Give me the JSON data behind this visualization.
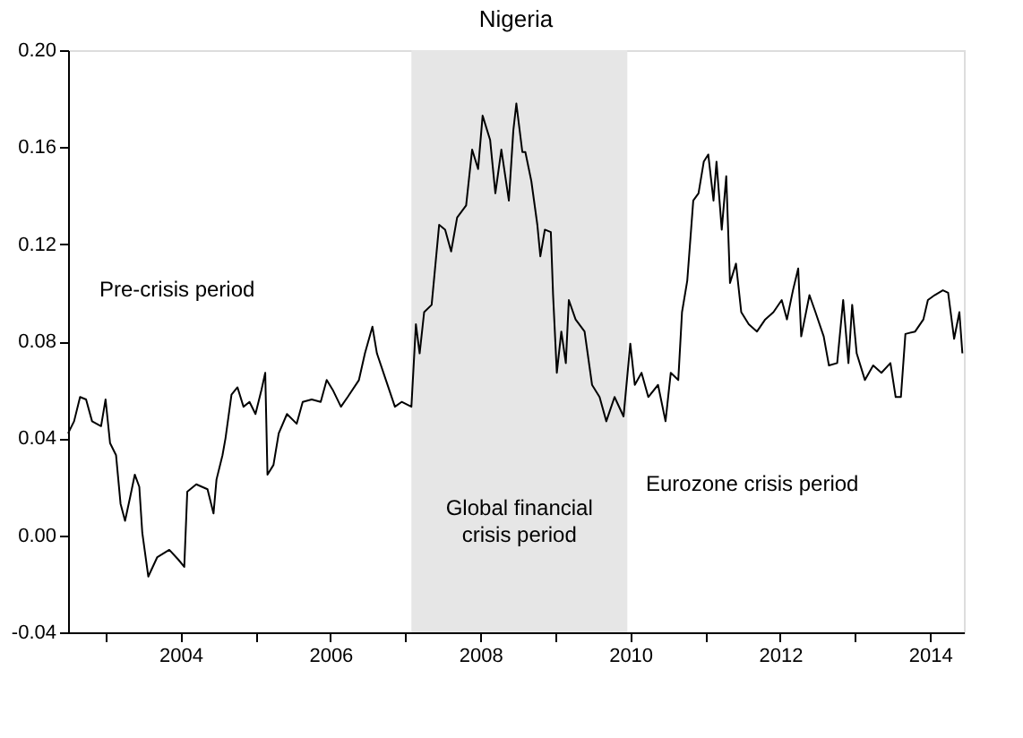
{
  "chart_data": {
    "type": "line",
    "title": "Nigeria",
    "x": [
      2002.5,
      2002.58,
      2002.66,
      2002.74,
      2002.82,
      2002.94,
      2003.0,
      2003.06,
      2003.14,
      2003.2,
      2003.26,
      2003.33,
      2003.39,
      2003.45,
      2003.49,
      2003.57,
      2003.69,
      2003.85,
      2003.97,
      2004.05,
      2004.09,
      2004.21,
      2004.36,
      2004.44,
      2004.48,
      2004.56,
      2004.6,
      2004.68,
      2004.76,
      2004.84,
      2004.92,
      2005.0,
      2005.08,
      2005.13,
      2005.16,
      2005.24,
      2005.31,
      2005.42,
      2005.55,
      2005.63,
      2005.75,
      2005.87,
      2005.95,
      2006.03,
      2006.14,
      2006.23,
      2006.38,
      2006.46,
      2006.56,
      2006.62,
      2006.74,
      2006.86,
      2006.95,
      2007.08,
      2007.14,
      2007.19,
      2007.25,
      2007.35,
      2007.45,
      2007.53,
      2007.61,
      2007.69,
      2007.81,
      2007.89,
      2007.97,
      2008.03,
      2008.13,
      2008.2,
      2008.28,
      2008.38,
      2008.44,
      2008.48,
      2008.56,
      2008.6,
      2008.68,
      2008.76,
      2008.8,
      2008.86,
      2008.94,
      2008.97,
      2009.02,
      2009.08,
      2009.14,
      2009.18,
      2009.27,
      2009.39,
      2009.49,
      2009.59,
      2009.68,
      2009.79,
      2009.91,
      2010.0,
      2010.06,
      2010.15,
      2010.24,
      2010.37,
      2010.47,
      2010.54,
      2010.64,
      2010.69,
      2010.76,
      2010.84,
      2010.91,
      2010.98,
      2011.04,
      2011.11,
      2011.15,
      2011.22,
      2011.28,
      2011.33,
      2011.41,
      2011.48,
      2011.58,
      2011.69,
      2011.8,
      2011.91,
      2012.02,
      2012.09,
      2012.17,
      2012.24,
      2012.28,
      2012.39,
      2012.47,
      2012.58,
      2012.65,
      2012.76,
      2012.84,
      2012.91,
      2012.96,
      2013.02,
      2013.13,
      2013.24,
      2013.35,
      2013.47,
      2013.54,
      2013.61,
      2013.67,
      2013.8,
      2013.91,
      2013.97,
      2014.06,
      2014.17,
      2014.24,
      2014.32,
      2014.39,
      2014.43
    ],
    "series": [
      {
        "color": "#000000",
        "values": [
          0.042,
          0.047,
          0.057,
          0.056,
          0.047,
          0.045,
          0.056,
          0.038,
          0.033,
          0.013,
          0.006,
          0.016,
          0.025,
          0.02,
          0.001,
          -0.017,
          -0.009,
          -0.006,
          -0.01,
          -0.013,
          0.018,
          0.021,
          0.019,
          0.009,
          0.023,
          0.033,
          0.04,
          0.058,
          0.061,
          0.053,
          0.055,
          0.05,
          0.06,
          0.067,
          0.025,
          0.029,
          0.042,
          0.05,
          0.046,
          0.055,
          0.056,
          0.055,
          0.064,
          0.06,
          0.053,
          0.057,
          0.064,
          0.075,
          0.086,
          0.075,
          0.064,
          0.053,
          0.055,
          0.053,
          0.087,
          0.075,
          0.092,
          0.095,
          0.128,
          0.126,
          0.117,
          0.131,
          0.136,
          0.159,
          0.151,
          0.173,
          0.163,
          0.141,
          0.159,
          0.138,
          0.167,
          0.178,
          0.158,
          0.158,
          0.146,
          0.128,
          0.115,
          0.126,
          0.125,
          0.099,
          0.067,
          0.084,
          0.071,
          0.097,
          0.089,
          0.084,
          0.062,
          0.057,
          0.047,
          0.057,
          0.049,
          0.079,
          0.062,
          0.067,
          0.057,
          0.062,
          0.047,
          0.067,
          0.064,
          0.092,
          0.105,
          0.138,
          0.141,
          0.154,
          0.157,
          0.138,
          0.154,
          0.126,
          0.148,
          0.104,
          0.112,
          0.092,
          0.087,
          0.084,
          0.089,
          0.092,
          0.097,
          0.089,
          0.101,
          0.11,
          0.082,
          0.099,
          0.092,
          0.082,
          0.07,
          0.071,
          0.097,
          0.071,
          0.095,
          0.075,
          0.064,
          0.07,
          0.067,
          0.071,
          0.057,
          0.057,
          0.083,
          0.084,
          0.089,
          0.097,
          0.099,
          0.101,
          0.1,
          0.081,
          0.092,
          0.075
        ]
      }
    ],
    "xlim": [
      2002.5,
      2014.45
    ],
    "xticks": [
      {
        "value": 2003,
        "label": null
      },
      2004,
      {
        "value": 2005,
        "label": null
      },
      2006,
      {
        "value": 2007,
        "label": null
      },
      2008,
      {
        "value": 2009,
        "label": null
      },
      2010,
      {
        "value": 2011,
        "label": null
      },
      2012,
      {
        "value": 2013,
        "label": null
      },
      2014
    ],
    "ylim": [
      -0.04,
      0.2
    ],
    "yticks": [
      {
        "value": -0.04,
        "label": "-0.04"
      },
      {
        "value": 0.0,
        "label": "0.00"
      },
      {
        "value": 0.04,
        "label": "0.04"
      },
      {
        "value": 0.08,
        "label": "0.08"
      },
      {
        "value": 0.12,
        "label": "0.12"
      },
      {
        "value": 0.16,
        "label": "0.16"
      },
      {
        "value": 0.2,
        "label": "0.20"
      }
    ],
    "bands": [
      {
        "axis": "x",
        "from": 2007.08,
        "to": 2009.96,
        "label": "Global financial crisis period",
        "color": "#e6e6e6"
      }
    ],
    "annotations": [
      "Pre-crisis period",
      "Eurozone crisis period"
    ],
    "grid": false,
    "line_style": "solid",
    "marker": "none"
  }
}
